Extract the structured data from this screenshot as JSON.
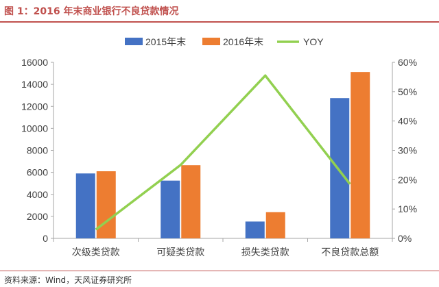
{
  "figure": {
    "title": "图 1：2016 年末商业银行不良贷款情况",
    "source": "资料来源：Wind，天风证券研究所"
  },
  "colors": {
    "series_2015": "#4472c4",
    "series_2016": "#ed7d31",
    "series_yoy": "#92d050",
    "title": "#c0504d",
    "axis": "#a6a6a6",
    "text": "#404040"
  },
  "chart_data": {
    "type": "bar",
    "title": "",
    "xlabel": "",
    "ylabel": "",
    "categories": [
      "次级类贷款",
      "可疑类贷款",
      "损失类贷款",
      "不良贷款总额"
    ],
    "series": [
      {
        "name": "2015年末",
        "type": "bar",
        "axis": "left",
        "values": [
          5900,
          5250,
          1530,
          12750
        ]
      },
      {
        "name": "2016年末",
        "type": "bar",
        "axis": "left",
        "values": [
          6100,
          6650,
          2380,
          15120
        ]
      },
      {
        "name": "YOY",
        "type": "line",
        "axis": "right",
        "values": [
          0.03,
          0.25,
          0.555,
          0.185
        ]
      }
    ],
    "ylim": [
      0,
      16000
    ],
    "yticks": [
      0,
      2000,
      4000,
      6000,
      8000,
      10000,
      12000,
      14000,
      16000
    ],
    "y2lim": [
      0,
      0.6
    ],
    "y2ticks": [
      "0%",
      "10%",
      "20%",
      "30%",
      "40%",
      "50%",
      "60%"
    ],
    "grid": false,
    "legend_position": "top"
  }
}
